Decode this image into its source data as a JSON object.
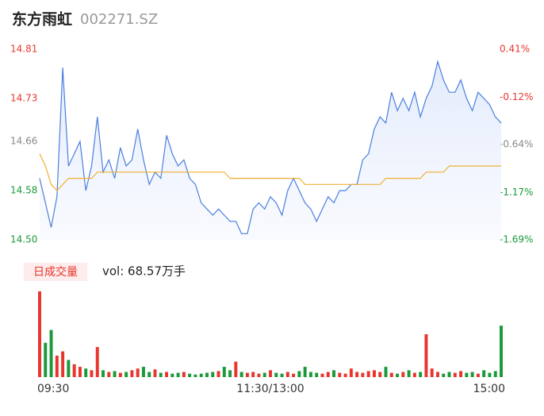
{
  "header": {
    "name": "东方雨虹",
    "code": "002271.SZ"
  },
  "chart_data": [
    {
      "type": "line",
      "x": [
        0,
        3,
        6,
        9,
        12,
        15,
        18,
        21,
        24,
        27,
        30,
        33,
        36,
        39,
        42,
        45,
        48,
        51,
        54,
        57,
        60,
        63,
        66,
        69,
        72,
        75,
        78,
        81,
        84,
        87,
        90,
        93,
        96,
        99,
        102,
        105,
        108,
        111,
        114,
        117,
        120,
        123,
        126,
        129,
        132,
        135,
        138,
        141,
        144,
        147,
        150,
        153,
        156,
        159,
        162,
        165,
        168,
        171,
        174,
        177,
        180,
        183,
        186,
        189,
        192,
        195,
        198,
        201,
        204,
        207,
        210,
        213,
        216,
        219,
        222,
        225,
        228,
        231,
        234,
        237,
        240
      ],
      "series": [
        {
          "name": "price",
          "color": "#4a7fe0",
          "values": [
            14.6,
            14.56,
            14.52,
            14.57,
            14.78,
            14.62,
            14.64,
            14.66,
            14.58,
            14.62,
            14.7,
            14.61,
            14.63,
            14.6,
            14.65,
            14.62,
            14.63,
            14.68,
            14.63,
            14.59,
            14.61,
            14.6,
            14.67,
            14.64,
            14.62,
            14.63,
            14.6,
            14.59,
            14.56,
            14.55,
            14.54,
            14.55,
            14.54,
            14.53,
            14.53,
            14.51,
            14.51,
            14.55,
            14.56,
            14.55,
            14.57,
            14.56,
            14.54,
            14.58,
            14.6,
            14.58,
            14.56,
            14.55,
            14.53,
            14.55,
            14.57,
            14.56,
            14.58,
            14.58,
            14.59,
            14.59,
            14.63,
            14.64,
            14.68,
            14.7,
            14.69,
            14.74,
            14.71,
            14.73,
            14.71,
            14.74,
            14.7,
            14.73,
            14.75,
            14.79,
            14.76,
            14.74,
            14.74,
            14.76,
            14.73,
            14.71,
            14.74,
            14.73,
            14.72,
            14.7,
            14.69
          ]
        },
        {
          "name": "average",
          "color": "#f0b030",
          "values": [
            14.64,
            14.62,
            14.59,
            14.58,
            14.59,
            14.6,
            14.6,
            14.6,
            14.6,
            14.6,
            14.61,
            14.61,
            14.61,
            14.61,
            14.61,
            14.61,
            14.61,
            14.61,
            14.61,
            14.61,
            14.61,
            14.61,
            14.61,
            14.61,
            14.61,
            14.61,
            14.61,
            14.61,
            14.61,
            14.61,
            14.61,
            14.61,
            14.61,
            14.6,
            14.6,
            14.6,
            14.6,
            14.6,
            14.6,
            14.6,
            14.6,
            14.6,
            14.6,
            14.6,
            14.6,
            14.6,
            14.59,
            14.59,
            14.59,
            14.59,
            14.59,
            14.59,
            14.59,
            14.59,
            14.59,
            14.59,
            14.59,
            14.59,
            14.59,
            14.59,
            14.6,
            14.6,
            14.6,
            14.6,
            14.6,
            14.6,
            14.6,
            14.61,
            14.61,
            14.61,
            14.61,
            14.62,
            14.62,
            14.62,
            14.62,
            14.62,
            14.62,
            14.62,
            14.62,
            14.62,
            14.62
          ]
        }
      ],
      "xlim": [
        0,
        240
      ],
      "xticks": [
        {
          "value": 0,
          "label": "09:30"
        },
        {
          "value": 120,
          "label": "11:30/13:00"
        },
        {
          "value": 240,
          "label": "15:00"
        }
      ],
      "ylim": [
        14.5,
        14.81
      ],
      "yticks": [
        {
          "value": 14.81,
          "label": "14.81"
        },
        {
          "value": 14.73,
          "label": "14.73"
        },
        {
          "value": 14.66,
          "label": "14.66"
        },
        {
          "value": 14.58,
          "label": "14.58"
        },
        {
          "value": 14.5,
          "label": "14.50"
        }
      ],
      "ytick_colors": [
        "#e8352e",
        "#e8352e",
        "#888888",
        "#1a9a3a",
        "#1a9a3a"
      ],
      "y2lim": [
        -1.69,
        0.41
      ],
      "y2ticks": [
        {
          "value": 0.41,
          "label": "0.41%"
        },
        {
          "value": -0.12,
          "label": "-0.12%"
        },
        {
          "value": -0.64,
          "label": "-0.64%"
        },
        {
          "value": -1.17,
          "label": "-1.17%"
        },
        {
          "value": -1.69,
          "label": "-1.69%"
        }
      ],
      "up_color": "#e8352e",
      "down_color": "#1a9a3a"
    },
    {
      "type": "bar",
      "title": "日成交量",
      "subtitle": "vol: 68.57万手",
      "values": [
        100,
        40,
        55,
        25,
        30,
        20,
        15,
        12,
        10,
        8,
        35,
        8,
        6,
        7,
        5,
        6,
        8,
        10,
        12,
        6,
        9,
        5,
        6,
        4,
        5,
        6,
        4,
        3,
        4,
        5,
        6,
        7,
        12,
        8,
        18,
        6,
        5,
        6,
        4,
        5,
        8,
        5,
        4,
        6,
        4,
        7,
        12,
        6,
        5,
        4,
        6,
        8,
        5,
        4,
        10,
        6,
        5,
        7,
        8,
        6,
        12,
        5,
        4,
        6,
        8,
        5,
        6,
        50,
        10,
        6,
        4,
        6,
        5,
        7,
        5,
        6,
        4,
        8,
        5,
        7,
        60
      ]
    }
  ]
}
